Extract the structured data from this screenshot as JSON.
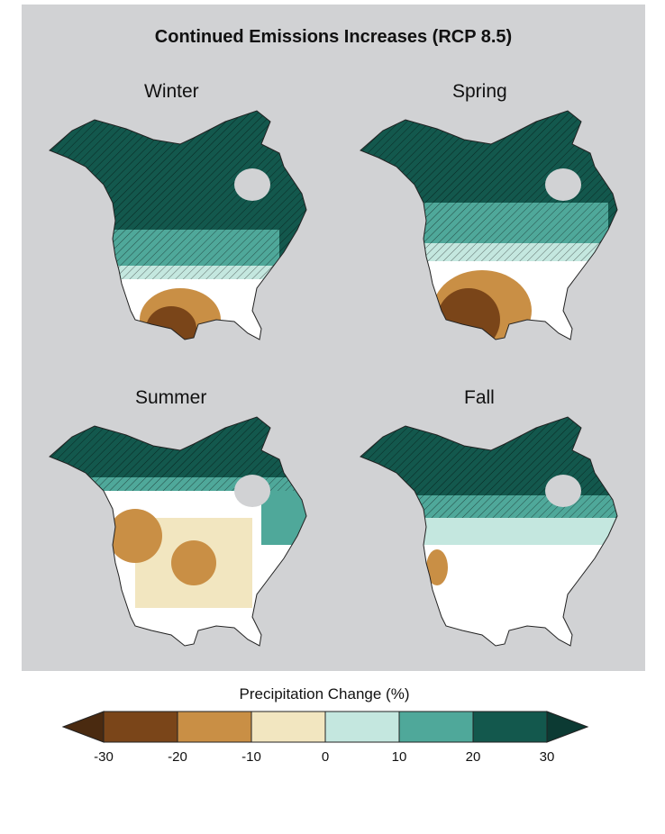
{
  "title": "Continued Emissions Increases (RCP 8.5)",
  "seasons": [
    "Winter",
    "Spring",
    "Summer",
    "Fall"
  ],
  "legend": {
    "title": "Precipitation Change (%)",
    "ticks": [
      "-30",
      "-20",
      "-10",
      "0",
      "10",
      "20",
      "30"
    ],
    "colors": [
      "#4a2a10",
      "#7a4519",
      "#c98f45",
      "#f2e6c0",
      "#c4e7df",
      "#4fa89a",
      "#13584d",
      "#0c3a33"
    ]
  },
  "palette": {
    "strong_wet": "#13584d",
    "wet": "#4fa89a",
    "light_wet": "#c4e7df",
    "neutral": "#ffffff",
    "light_dry": "#f2e6c0",
    "dry": "#c98f45",
    "strong_dry": "#7a4519",
    "panel_bg": "#d1d2d4"
  }
}
